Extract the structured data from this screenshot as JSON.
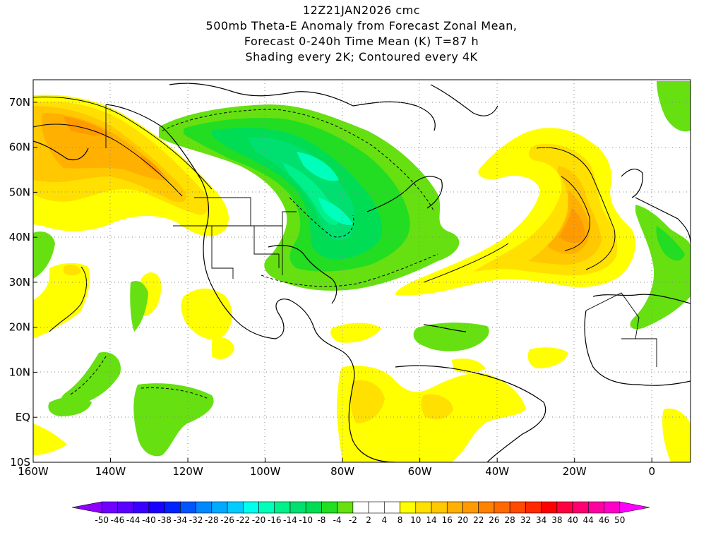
{
  "title_lines": [
    "12Z21JAN2026 cmc",
    "500mb Theta-E Anomaly from Forecast Zonal Mean,",
    "Forecast 0-240h Time Mean (K) T=87 h",
    "Shading every 2K; Contoured every 4K"
  ],
  "map": {
    "projection": "lat-lon",
    "lon_range": [
      -160,
      10
    ],
    "lat_range": [
      -10,
      75
    ],
    "lat_ticks": [
      {
        "value": 70,
        "label": "70N"
      },
      {
        "value": 60,
        "label": "60N"
      },
      {
        "value": 50,
        "label": "50N"
      },
      {
        "value": 40,
        "label": "40N"
      },
      {
        "value": 30,
        "label": "30N"
      },
      {
        "value": 20,
        "label": "20N"
      },
      {
        "value": 10,
        "label": "10N"
      },
      {
        "value": 0,
        "label": "EQ"
      },
      {
        "value": -10,
        "label": "10S"
      }
    ],
    "lon_ticks": [
      {
        "value": -160,
        "label": "160W"
      },
      {
        "value": -140,
        "label": "140W"
      },
      {
        "value": -120,
        "label": "120W"
      },
      {
        "value": -100,
        "label": "100W"
      },
      {
        "value": -80,
        "label": "80W"
      },
      {
        "value": -60,
        "label": "60W"
      },
      {
        "value": -40,
        "label": "40W"
      },
      {
        "value": -20,
        "label": "20W"
      },
      {
        "value": 0,
        "label": "0"
      }
    ],
    "grid": "dotted gray"
  },
  "colorbar": {
    "labels": [
      "-50",
      "-46",
      "-44",
      "-40",
      "-38",
      "-34",
      "-32",
      "-28",
      "-26",
      "-22",
      "-20",
      "-16",
      "-14",
      "-10",
      "-8",
      "-4",
      "-2",
      "2",
      "4",
      "8",
      "10",
      "14",
      "16",
      "20",
      "22",
      "26",
      "28",
      "32",
      "34",
      "38",
      "40",
      "44",
      "46",
      "50"
    ],
    "colors": [
      "#8f00ff",
      "#7000ff",
      "#5a00ff",
      "#3a00ff",
      "#1a00ff",
      "#0022ff",
      "#0055ff",
      "#0088ff",
      "#00aaff",
      "#00ccff",
      "#00ffee",
      "#00ffbb",
      "#00f08a",
      "#00e070",
      "#00dd55",
      "#22dd22",
      "#66e011",
      "#ffffff",
      "#ffffff",
      "#ffffff",
      "#ffff00",
      "#ffe000",
      "#ffc800",
      "#ffb000",
      "#ff9a00",
      "#ff8200",
      "#ff6a00",
      "#ff4a00",
      "#ff2a00",
      "#ff0000",
      "#ff0040",
      "#ff0070",
      "#ff00a0",
      "#ff00c8",
      "#ff00ff"
    ]
  },
  "anomaly_fields": [
    {
      "name": "pacific-warm-anomaly",
      "sign": "positive",
      "max_K": 14
    },
    {
      "name": "north-america-cold-anomaly",
      "sign": "negative",
      "min_K": -14
    },
    {
      "name": "atlantic-warm-anomaly",
      "sign": "positive",
      "max_K": 16
    },
    {
      "name": "south-america-warm-anomaly",
      "sign": "positive",
      "max_K": 6
    },
    {
      "name": "tropical-cold-patches",
      "sign": "negative",
      "min_K": -6
    }
  ]
}
